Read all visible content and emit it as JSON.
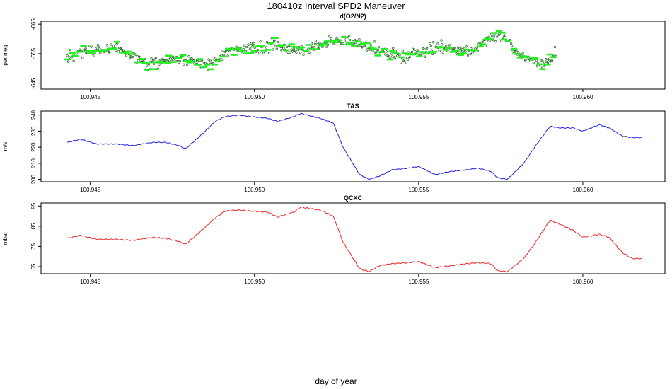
{
  "figure": {
    "title": "180410z   Interval SPD2 Maneuver",
    "xlabel": "day of year"
  },
  "chart_data": [
    {
      "type": "scatter",
      "title": "d(O2/N2)",
      "ylabel": "per meg",
      "xlim": [
        100.9435,
        100.9625
      ],
      "ylim": [
        -666,
        -643
      ],
      "y_reversed": true,
      "xticks": [
        100.945,
        100.95,
        100.955,
        100.96
      ],
      "xtick_labels": [
        "100.945",
        "100.950",
        "100.955",
        "100.960"
      ],
      "yticks": [
        -665,
        -655,
        -645
      ],
      "ytick_labels": [
        "-665",
        "-655",
        "-645"
      ],
      "x_start": 100.9443,
      "x_end": 100.9592,
      "series": [
        {
          "marker": "open-circle",
          "color": "#1e6e1e",
          "x_knots": [
            100.9443,
            100.945,
            100.9458,
            100.9468,
            100.9476,
            100.9485,
            100.9493,
            100.9505,
            100.9515,
            100.9527,
            100.9535,
            100.9545,
            100.9556,
            100.9566,
            100.9575,
            100.958,
            100.9588,
            100.9592
          ],
          "y_knots": [
            -654,
            -656,
            -657,
            -651,
            -654,
            -651,
            -656,
            -658,
            -656,
            -660,
            -657,
            -654,
            -657,
            -656,
            -662,
            -655,
            -651,
            -656
          ],
          "count": 520
        },
        {
          "marker": "short-dash",
          "color": "#22ee22",
          "x_knots": [
            100.9443,
            100.945,
            100.9458,
            100.9468,
            100.9476,
            100.9485,
            100.9493,
            100.9505,
            100.9515,
            100.9527,
            100.9535,
            100.9545,
            100.9556,
            100.9566,
            100.9575,
            100.958,
            100.9588,
            100.9592
          ],
          "y_knots": [
            -654,
            -656,
            -657,
            -651,
            -654,
            -651,
            -656,
            -658,
            -656,
            -660,
            -657,
            -654,
            -657,
            -656,
            -662,
            -655,
            -651,
            -656
          ],
          "count": 130
        }
      ]
    },
    {
      "type": "line",
      "title": "TAS",
      "ylabel": "m/s",
      "xlim": [
        100.9435,
        100.9625
      ],
      "ylim": [
        198.5,
        242.5
      ],
      "xticks": [
        100.945,
        100.95,
        100.955,
        100.96
      ],
      "xtick_labels": [
        "100.945",
        "100.950",
        "100.955",
        "100.960"
      ],
      "yticks": [
        200,
        210,
        220,
        230,
        240
      ],
      "ytick_labels": [
        "200",
        "210",
        "220",
        "230",
        "240"
      ],
      "series": [
        {
          "color": "#2222dd",
          "x": [
            100.9443,
            100.9447,
            100.9452,
            100.9458,
            100.9463,
            100.9469,
            100.9473,
            100.9477,
            100.9479,
            100.9484,
            100.9488,
            100.9491,
            100.9495,
            100.9499,
            100.9504,
            100.9507,
            100.9512,
            100.9514,
            100.952,
            100.9524,
            100.9527,
            100.9532,
            100.9535,
            100.9538,
            100.9542,
            100.9547,
            100.955,
            100.9555,
            100.956,
            100.9565,
            100.9568,
            100.9572,
            100.9574,
            100.9577,
            100.9582,
            100.9586,
            100.959,
            100.9593,
            100.9597,
            100.96,
            100.9605,
            100.9608,
            100.9612,
            100.9615,
            100.9618
          ],
          "y": [
            223,
            225,
            222,
            222,
            221,
            223,
            223,
            221,
            219,
            228,
            236,
            239,
            240,
            239,
            238,
            236,
            239,
            241,
            238,
            235,
            220,
            203,
            200,
            202,
            206,
            207,
            208,
            203,
            205,
            206,
            207,
            205,
            201,
            200,
            210,
            222,
            233,
            232,
            232,
            230,
            234,
            232,
            227,
            226,
            226
          ]
        }
      ]
    },
    {
      "type": "line",
      "title": "QCXC",
      "ylabel": "mbar",
      "xlim": [
        100.9435,
        100.9625
      ],
      "ylim": [
        61.5,
        96.5
      ],
      "xticks": [
        100.945,
        100.95,
        100.955,
        100.96
      ],
      "xtick_labels": [
        "100.945",
        "100.950",
        "100.955",
        "100.960"
      ],
      "yticks": [
        65,
        75,
        85,
        95
      ],
      "ytick_labels": [
        "65",
        "75",
        "85",
        "95"
      ],
      "series": [
        {
          "color": "#ee2222",
          "x": [
            100.9443,
            100.9447,
            100.9452,
            100.9458,
            100.9463,
            100.9469,
            100.9473,
            100.9477,
            100.9479,
            100.9484,
            100.9488,
            100.9491,
            100.9495,
            100.9499,
            100.9504,
            100.9507,
            100.9512,
            100.9514,
            100.952,
            100.9524,
            100.9527,
            100.9532,
            100.9535,
            100.9538,
            100.9542,
            100.9547,
            100.955,
            100.9555,
            100.956,
            100.9565,
            100.9568,
            100.9572,
            100.9574,
            100.9577,
            100.9582,
            100.9586,
            100.959,
            100.9593,
            100.9597,
            100.96,
            100.9605,
            100.9608,
            100.9612,
            100.9615,
            100.9618
          ],
          "y": [
            79,
            80.5,
            78.5,
            78.5,
            78,
            79.5,
            79,
            77.5,
            76,
            83,
            89,
            92.5,
            93,
            92.5,
            92,
            89.5,
            92,
            94.5,
            93,
            90,
            77,
            64,
            62.5,
            65.5,
            66.5,
            67,
            67.5,
            64.5,
            65.5,
            66.5,
            67,
            66.5,
            63,
            62.5,
            69,
            78,
            88,
            86,
            83,
            79.5,
            81,
            79.5,
            72,
            69,
            69
          ]
        }
      ]
    }
  ]
}
